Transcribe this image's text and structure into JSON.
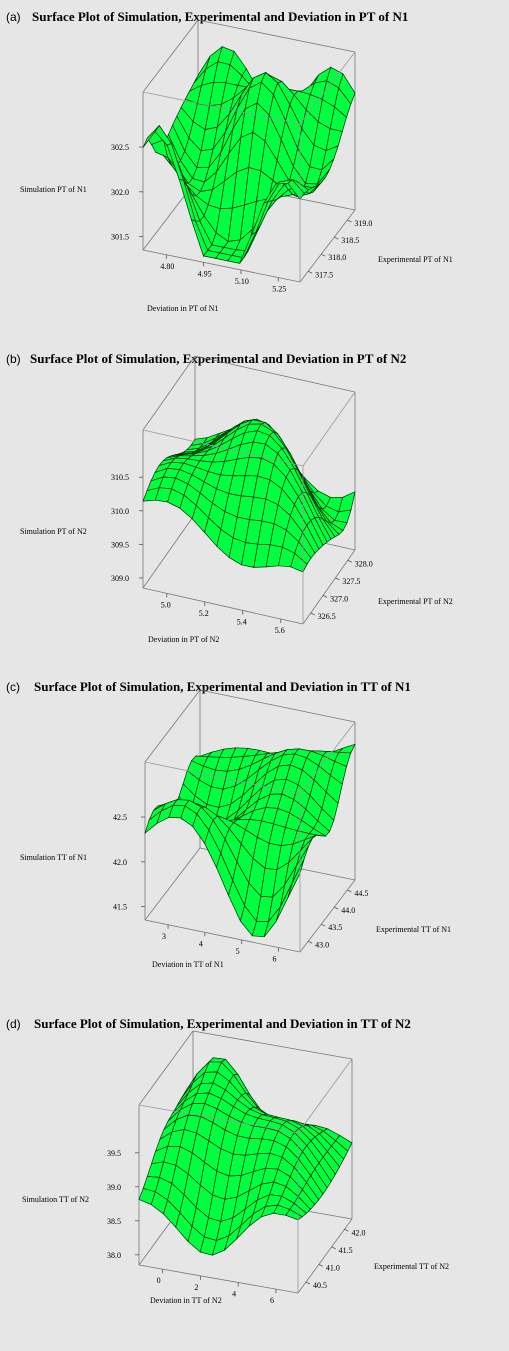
{
  "panels": [
    {
      "label": "(a)",
      "title": "Surface Plot of Simulation, Experimental and Deviation in PT of N1",
      "chart_data": {
        "type": "surface",
        "title": "Surface Plot of Simulation, Experimental and Deviation in PT of N1",
        "xlabel": "Deviation in PT of N1",
        "ylabel": "Experimental PT of N1",
        "zlabel": "Simulation PT of N1",
        "x_ticks": [
          "4.80",
          "4.95",
          "5.10",
          "5.25"
        ],
        "y_ticks": [
          "317.5",
          "318.0",
          "318.5",
          "319.0"
        ],
        "z_ticks": [
          "301.5",
          "302.0",
          "302.5"
        ],
        "xlim": [
          4.74,
          5.3
        ],
        "ylim": [
          317.3,
          319.2
        ],
        "zlim": [
          301.45,
          302.75
        ],
        "grid": 13,
        "surface_color": "#00ff40"
      }
    },
    {
      "label": "(b)",
      "title": "Surface Plot of Simulation, Experimental and Deviation in PT of N2",
      "chart_data": {
        "type": "surface",
        "title": "Surface Plot of Simulation, Experimental and Deviation in PT of N2",
        "xlabel": "Deviation in PT of N2",
        "ylabel": "Experimental PT of N2",
        "zlabel": "Simulation PT of N2",
        "x_ticks": [
          "5.0",
          "5.2",
          "5.4",
          "5.6"
        ],
        "y_ticks": [
          "326.5",
          "327.0",
          "327.5",
          "328.0"
        ],
        "z_ticks": [
          "309.0",
          "309.5",
          "310.0",
          "310.5"
        ],
        "xlim": [
          4.9,
          5.65
        ],
        "ylim": [
          326.3,
          328.2
        ],
        "zlim": [
          308.9,
          311.1
        ],
        "grid": 13,
        "surface_color": "#00ff40"
      }
    },
    {
      "label": "(c)",
      "title": "Surface Plot of Simulation, Experimental and Deviation in TT of N1",
      "chart_data": {
        "type": "surface",
        "title": "Surface Plot of Simulation, Experimental and Deviation in TT of N1",
        "xlabel": "Deviation in TT of N1",
        "ylabel": "Experimental TT of N1",
        "zlabel": "Simulation TT of N1",
        "x_ticks": [
          "3",
          "4",
          "5",
          "6"
        ],
        "y_ticks": [
          "43.0",
          "43.5",
          "44.0",
          "44.5"
        ],
        "z_ticks": [
          "41.5",
          "42.0",
          "42.5"
        ],
        "xlim": [
          2.8,
          6.4
        ],
        "ylim": [
          42.85,
          44.7
        ],
        "zlim": [
          41.3,
          42.9
        ],
        "grid": 13,
        "surface_color": "#00ff40"
      }
    },
    {
      "label": "(d)",
      "title": "Surface Plot of Simulation, Experimental and Deviation in TT of N2",
      "chart_data": {
        "type": "surface",
        "title": "Surface Plot of Simulation, Experimental and Deviation in TT of N2",
        "xlabel": "Deviation in TT of N2",
        "ylabel": "Experimental TT of N2",
        "zlabel": "Simulation TT of N2",
        "x_ticks": [
          "0",
          "2",
          "4",
          "6"
        ],
        "y_ticks": [
          "40.5",
          "41.0",
          "41.5",
          "42.0"
        ],
        "z_ticks": [
          "38.0",
          "38.5",
          "39.0",
          "39.5"
        ],
        "xlim": [
          -0.3,
          7.2
        ],
        "ylim": [
          40.3,
          42.2
        ],
        "zlim": [
          37.9,
          40.1
        ],
        "grid": 13,
        "surface_color": "#00ff40"
      }
    }
  ]
}
